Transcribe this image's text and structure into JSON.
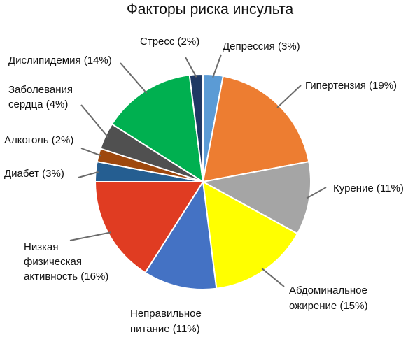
{
  "chart_data": {
    "type": "pie",
    "title": "Факторы риска инсульта",
    "start": "12 o'clock",
    "direction": "clockwise",
    "slices": [
      {
        "label": [
          "Депрессия (3%)"
        ],
        "value": 3,
        "color": "#5b9bd5"
      },
      {
        "label": [
          "Гипертензия (19%)"
        ],
        "value": 19,
        "color": "#ed7d31"
      },
      {
        "label": [
          "Курение (11%)"
        ],
        "value": 11,
        "color": "#a5a5a5"
      },
      {
        "label": [
          "Абдоминальное",
          "ожирение (15%)"
        ],
        "value": 15,
        "color": "#ffff00"
      },
      {
        "label": [
          "Неправильное",
          "питание (11%)"
        ],
        "value": 11,
        "color": "#4472c4"
      },
      {
        "label": [
          "Низкая",
          "физическая",
          "активность (16%)"
        ],
        "value": 16,
        "color": "#e03c22"
      },
      {
        "label": [
          "Диабет (3%)"
        ],
        "value": 3,
        "color": "#255e91"
      },
      {
        "label": [
          "Алкоголь (2%)"
        ],
        "value": 2,
        "color": "#9e480e"
      },
      {
        "label": [
          "Заболевания",
          "сердца (4%)"
        ],
        "value": 4,
        "color": "#505050"
      },
      {
        "label": [
          "Дислипидемия (14%)"
        ],
        "value": 14,
        "color": "#00b050"
      },
      {
        "label": [
          "Стресс (2%)"
        ],
        "value": 2,
        "color": "#1f3864"
      }
    ]
  }
}
